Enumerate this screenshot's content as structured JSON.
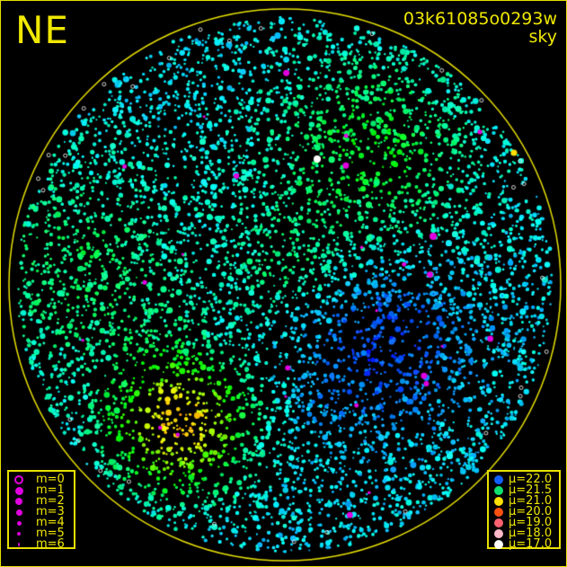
{
  "header": {
    "direction": "NE",
    "image_id": "03k61085o0293w",
    "kind": "sky"
  },
  "chart_data": {
    "type": "scatter",
    "title": "03k61085o0293w sky",
    "colors": {
      "frame": "#e8e000",
      "text": "#f0e800",
      "background": "#000000"
    },
    "magnitude_legend": [
      {
        "label": "m=0",
        "style": "ring",
        "color": "#e000e0"
      },
      {
        "label": "m=1",
        "color": "#e000e0"
      },
      {
        "label": "m=2",
        "color": "#e000e0"
      },
      {
        "label": "m=3",
        "color": "#e000e0"
      },
      {
        "label": "m=4",
        "color": "#e000e0"
      },
      {
        "label": "m=5",
        "color": "#e000e0"
      },
      {
        "label": "m=6",
        "color": "#e000e0"
      }
    ],
    "brightness_legend": [
      {
        "label": "μ=22.0",
        "color": "#1060ff"
      },
      {
        "label": "μ=21.5",
        "color": "#10e070"
      },
      {
        "label": "μ=21.0",
        "color": "#ffe000"
      },
      {
        "label": "μ=20.0",
        "color": "#ff5010"
      },
      {
        "label": "μ=19.0",
        "color": "#ff6070"
      },
      {
        "label": "μ=18.0",
        "color": "#ffb8c8"
      },
      {
        "label": "μ=17.0",
        "color": "#ffffff"
      }
    ]
  }
}
